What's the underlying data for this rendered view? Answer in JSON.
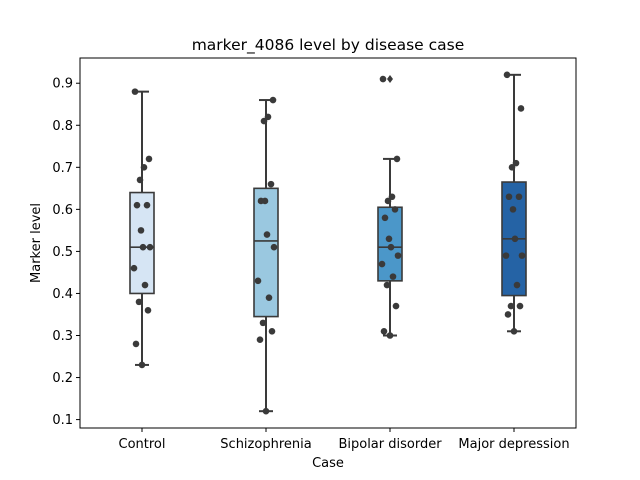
{
  "chart_data": {
    "type": "box",
    "title": "marker_4086 level by disease case",
    "xlabel": "Case",
    "ylabel": "Marker level",
    "ylim": [
      0.08,
      0.96
    ],
    "yticks": [
      "0.1",
      "0.2",
      "0.3",
      "0.4",
      "0.5",
      "0.6",
      "0.7",
      "0.8",
      "0.9"
    ],
    "grid": false,
    "legend": "none",
    "categories": [
      "Control",
      "Schizophrenia",
      "Bipolar disorder",
      "Major depression"
    ],
    "boxes": [
      {
        "category": "Control",
        "whisker_low": 0.23,
        "q1": 0.4,
        "median": 0.51,
        "q3": 0.64,
        "whisker_high": 0.88,
        "outliers": [],
        "color": "#d6e5f4"
      },
      {
        "category": "Schizophrenia",
        "whisker_low": 0.12,
        "q1": 0.345,
        "median": 0.525,
        "q3": 0.65,
        "whisker_high": 0.86,
        "outliers": [],
        "color": "#9ac8e0"
      },
      {
        "category": "Bipolar disorder",
        "whisker_low": 0.3,
        "q1": 0.43,
        "median": 0.51,
        "q3": 0.605,
        "whisker_high": 0.72,
        "outliers": [
          0.91
        ],
        "color": "#4b97c9"
      },
      {
        "category": "Major depression",
        "whisker_low": 0.31,
        "q1": 0.395,
        "median": 0.53,
        "q3": 0.665,
        "whisker_high": 0.92,
        "outliers": [],
        "color": "#2563a5"
      }
    ],
    "points": [
      [
        0.23,
        0.28,
        0.36,
        0.38,
        0.42,
        0.46,
        0.51,
        0.51,
        0.55,
        0.61,
        0.61,
        0.67,
        0.7,
        0.72,
        0.88
      ],
      [
        0.12,
        0.29,
        0.31,
        0.33,
        0.39,
        0.43,
        0.51,
        0.54,
        0.62,
        0.62,
        0.66,
        0.81,
        0.82,
        0.86
      ],
      [
        0.3,
        0.31,
        0.37,
        0.42,
        0.44,
        0.47,
        0.49,
        0.51,
        0.53,
        0.58,
        0.6,
        0.62,
        0.63,
        0.72,
        0.91
      ],
      [
        0.31,
        0.35,
        0.37,
        0.37,
        0.42,
        0.49,
        0.49,
        0.53,
        0.6,
        0.63,
        0.63,
        0.7,
        0.71,
        0.84,
        0.92
      ]
    ],
    "colors": {
      "box_edge": "#3a3a3a",
      "point": "#3a3a3a",
      "axis": "#000000"
    }
  }
}
